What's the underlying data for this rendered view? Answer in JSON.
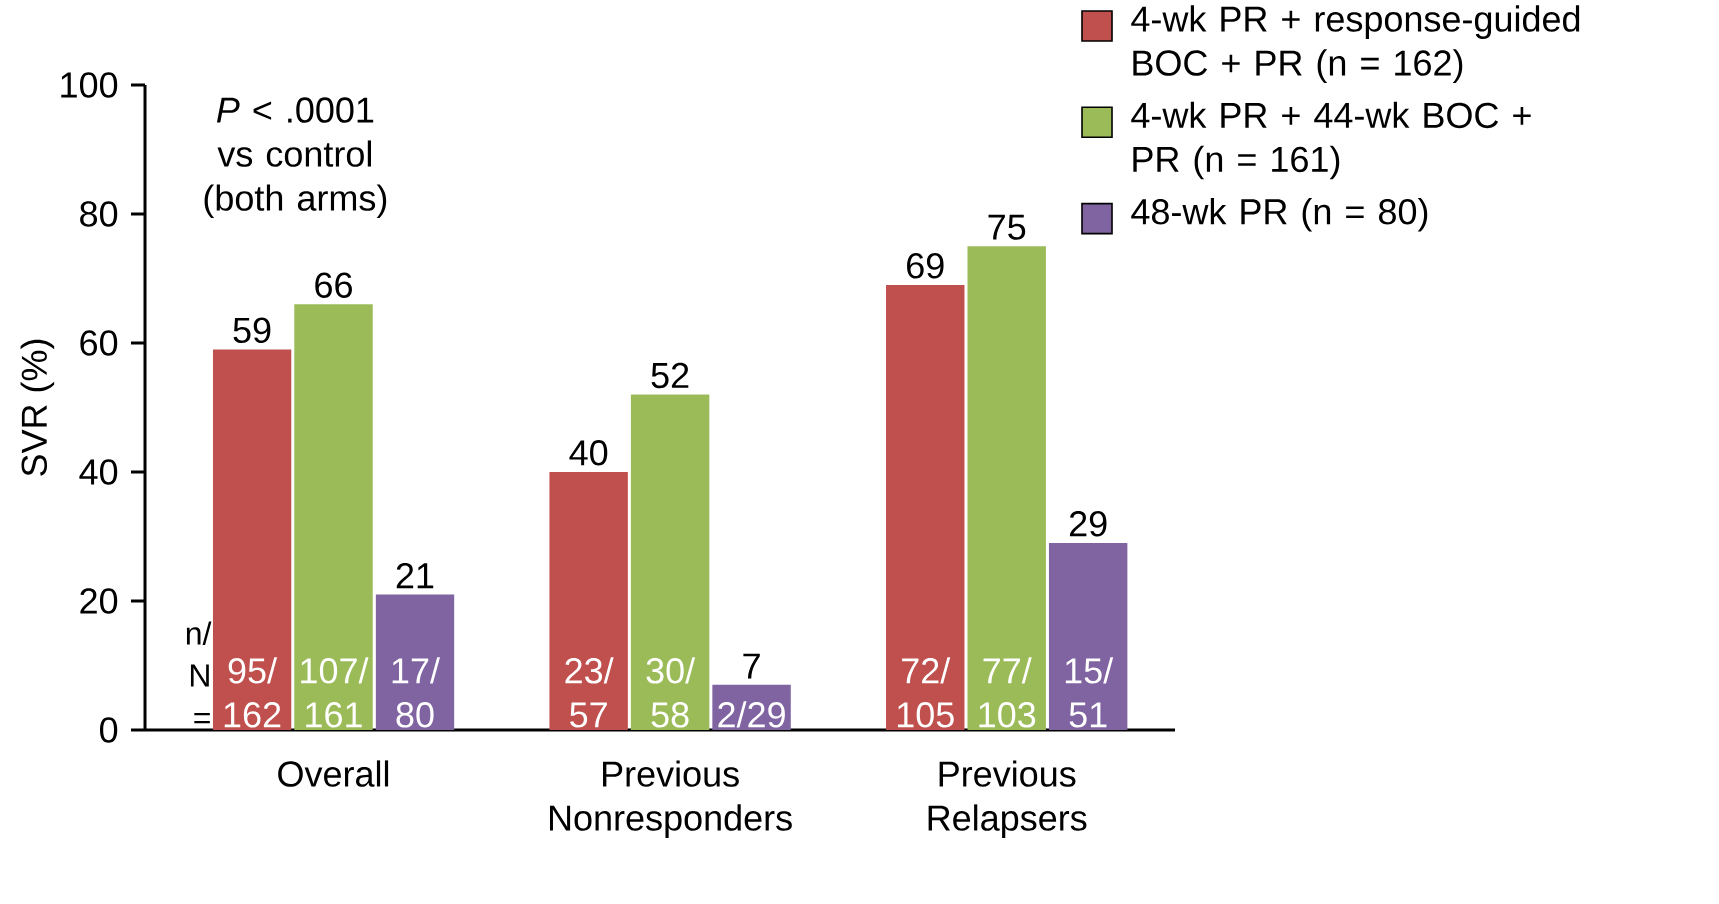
{
  "chart_data": {
    "type": "bar",
    "ylabel": "SVR (%)",
    "categories": [
      "Overall",
      "Previous Nonresponders",
      "Previous Relapsers"
    ],
    "series": [
      {
        "name": "4-wk PR + response-guided BOC + PR (n = 162)",
        "color": "#c0504d",
        "values": [
          59,
          40,
          69
        ]
      },
      {
        "name": "4-wk PR + 44-wk BOC + PR (n = 161)",
        "color": "#9bbb59",
        "values": [
          66,
          52,
          75
        ]
      },
      {
        "name": "48-wk PR (n = 80)",
        "color": "#8064a2",
        "values": [
          21,
          7,
          29
        ]
      }
    ],
    "ylim": [
      0,
      100
    ],
    "yticks": [
      0,
      20,
      40,
      60,
      80,
      100
    ],
    "data_labels": true,
    "legend": "top right",
    "grid": false,
    "annotations": [
      "*P* < .0001 vs control (both arms)",
      "n/ N =",
      "95/ 162",
      "23/ 57",
      "72/ 105",
      "107/ 161",
      "30/ 58",
      "77/ 103",
      "17/ 80",
      "2/29",
      "15/ 51"
    ]
  }
}
